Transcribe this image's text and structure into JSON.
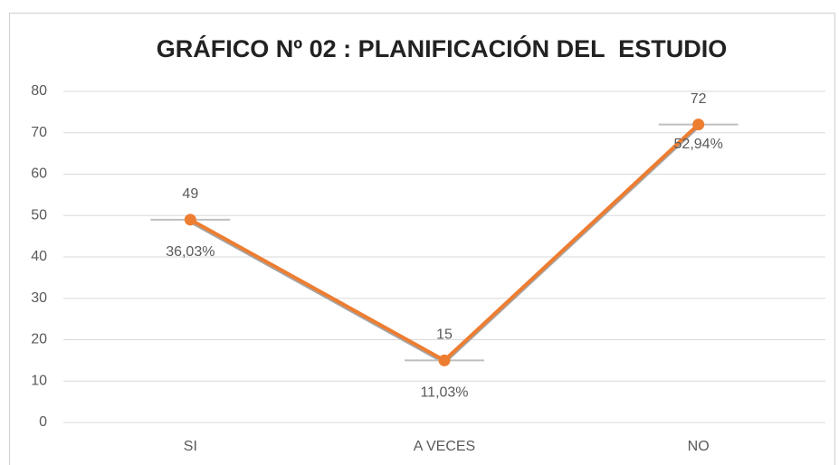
{
  "chart_data": {
    "type": "line",
    "title": "GRÁFICO Nº 02 : PLANIFICACIÓN DEL  ESTUDIO",
    "categories": [
      "SI",
      "A VECES",
      "NO"
    ],
    "series": [
      {
        "color": "#ed7d31",
        "values": [
          49,
          15,
          72
        ],
        "percent_labels": [
          "36,03%",
          "11,03%",
          "52,94%"
        ]
      }
    ],
    "ylim": [
      0,
      80
    ],
    "yticks": [
      0,
      10,
      20,
      30,
      40,
      50,
      60,
      70,
      80
    ],
    "grid": true
  }
}
